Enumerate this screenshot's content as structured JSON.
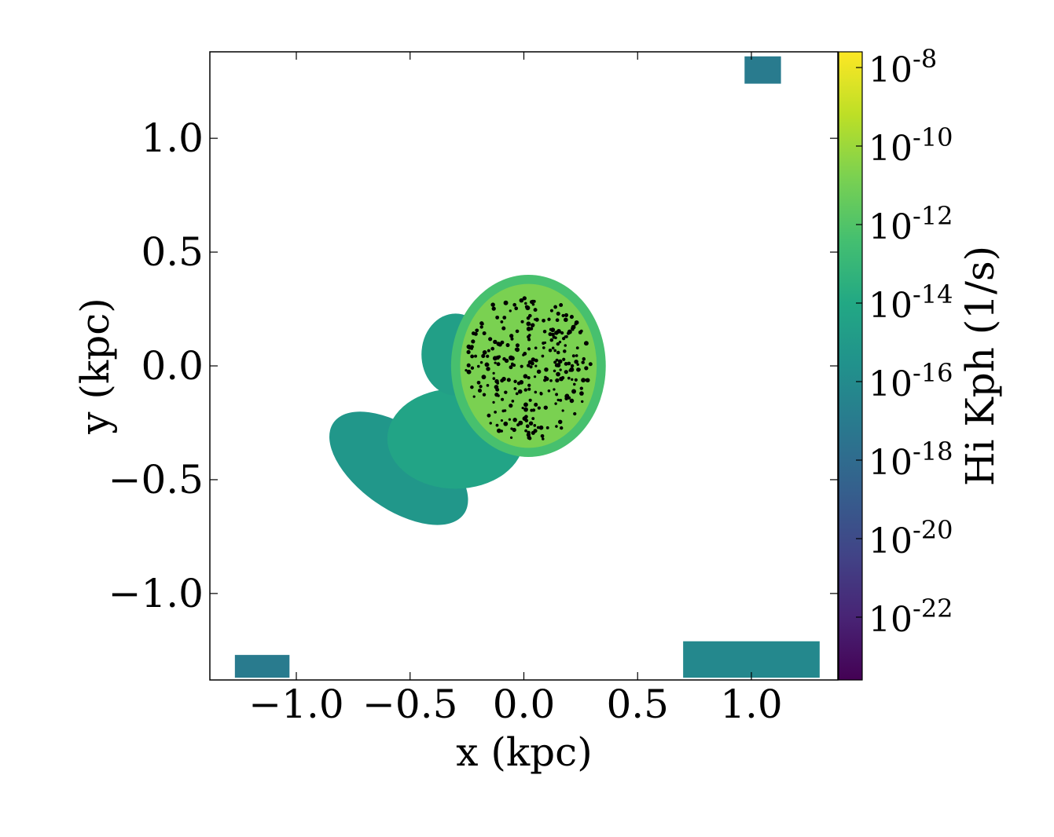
{
  "chart_data": {
    "type": "heatmap",
    "title": "",
    "xlabel": "x (kpc)",
    "ylabel": "y (kpc)",
    "xlim": [
      -1.38,
      1.38
    ],
    "ylim": [
      -1.38,
      1.38
    ],
    "xticks": [
      -1.0,
      -0.5,
      0.0,
      0.5,
      1.0
    ],
    "xtick_labels": [
      "−1.0",
      "−0.5",
      "0.0",
      "0.5",
      "1.0"
    ],
    "yticks": [
      -1.0,
      -0.5,
      0.0,
      0.5,
      1.0
    ],
    "ytick_labels": [
      "−1.0",
      "−0.5",
      "0.0",
      "0.5",
      "1.0"
    ],
    "colorbar": {
      "label": "Hi Kph  (1/s)",
      "scale": "log",
      "colormap": "viridis",
      "range_exponent": [
        -23.6,
        -7.6
      ],
      "tick_exponents": [
        -8,
        -10,
        -12,
        -14,
        -16,
        -18,
        -20,
        -22
      ],
      "tick_label_base": "10"
    },
    "regions": [
      {
        "name": "central disc",
        "center": [
          0.02,
          0.0
        ],
        "radii": [
          0.3,
          0.36
        ],
        "log_value": -10.8
      },
      {
        "name": "disc rim",
        "center": [
          0.02,
          0.0
        ],
        "radii": [
          0.34,
          0.4
        ],
        "log_value": -12.3
      },
      {
        "name": "southwest envelope",
        "center": [
          -0.3,
          -0.32
        ],
        "radii": [
          0.3,
          0.22
        ],
        "log_value": -14.3
      },
      {
        "name": "spiral arm",
        "center": [
          -0.55,
          -0.45
        ],
        "radii": [
          0.35,
          0.18
        ],
        "log_value": -15.2
      },
      {
        "name": "northwest plume",
        "center": [
          -0.3,
          0.05
        ],
        "radii": [
          0.15,
          0.18
        ],
        "log_value": -14.6
      },
      {
        "name": "edge block bottom-right",
        "center": [
          1.0,
          -1.29
        ],
        "radii": [
          0.3,
          0.08
        ],
        "log_value": -16.2
      },
      {
        "name": "edge block bottom-left",
        "center": [
          -1.15,
          -1.32
        ],
        "radii": [
          0.12,
          0.05
        ],
        "log_value": -17.0
      },
      {
        "name": "edge block top-right",
        "center": [
          1.05,
          1.3
        ],
        "radii": [
          0.08,
          0.06
        ],
        "log_value": -17.0
      }
    ],
    "star_particles": {
      "color": "#000000",
      "count_shown": 300
    }
  }
}
